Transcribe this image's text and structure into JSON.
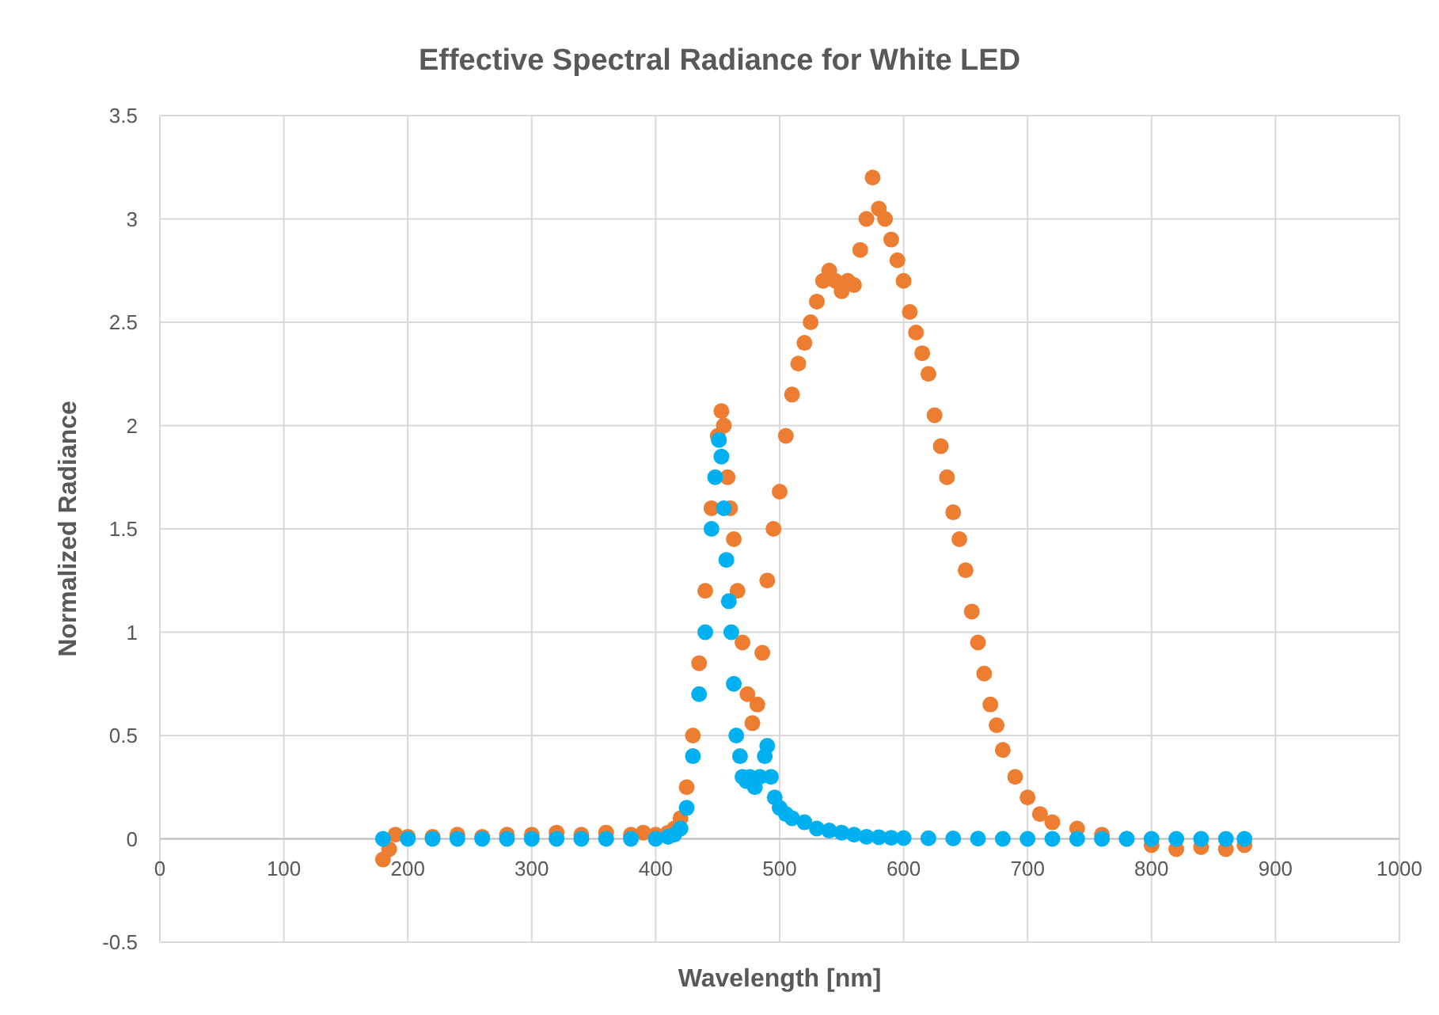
{
  "chart_data": {
    "type": "scatter",
    "title": "Effective Spectral Radiance for White LED",
    "xlabel": "Wavelength [nm]",
    "ylabel": "Normalized Radiance",
    "xlim": [
      0,
      1000
    ],
    "xticks": [
      0,
      100,
      200,
      300,
      400,
      500,
      600,
      700,
      800,
      900,
      1000
    ],
    "ylim": [
      -0.5,
      3.5
    ],
    "yticks": [
      -0.5,
      0,
      0.5,
      1,
      1.5,
      2,
      2.5,
      3,
      3.5
    ],
    "grid": true,
    "marker": "circle",
    "series": [
      {
        "color": "#ed7d31",
        "x": [
          180,
          185,
          190,
          200,
          220,
          240,
          260,
          280,
          300,
          320,
          340,
          360,
          380,
          390,
          400,
          410,
          415,
          420,
          425,
          430,
          435,
          440,
          445,
          450,
          453,
          455,
          458,
          460,
          463,
          466,
          470,
          474,
          478,
          482,
          486,
          490,
          495,
          500,
          505,
          510,
          515,
          520,
          525,
          530,
          535,
          540,
          545,
          550,
          555,
          560,
          565,
          570,
          575,
          580,
          585,
          590,
          595,
          600,
          605,
          610,
          615,
          620,
          625,
          630,
          635,
          640,
          645,
          650,
          655,
          660,
          665,
          670,
          675,
          680,
          690,
          700,
          710,
          720,
          740,
          760,
          780,
          800,
          820,
          840,
          860,
          875
        ],
        "values": [
          -0.1,
          -0.05,
          0.02,
          0.01,
          0.01,
          0.02,
          0.01,
          0.02,
          0.02,
          0.03,
          0.02,
          0.03,
          0.02,
          0.03,
          0.02,
          0.03,
          0.05,
          0.1,
          0.25,
          0.5,
          0.85,
          1.2,
          1.6,
          1.95,
          2.07,
          2.0,
          1.75,
          1.6,
          1.45,
          1.2,
          0.95,
          0.7,
          0.56,
          0.65,
          0.9,
          1.25,
          1.5,
          1.68,
          1.95,
          2.15,
          2.3,
          2.4,
          2.5,
          2.6,
          2.7,
          2.75,
          2.7,
          2.65,
          2.7,
          2.68,
          2.85,
          3.0,
          3.2,
          3.05,
          3.0,
          2.9,
          2.8,
          2.7,
          2.55,
          2.45,
          2.35,
          2.25,
          2.05,
          1.9,
          1.75,
          1.58,
          1.45,
          1.3,
          1.1,
          0.95,
          0.8,
          0.65,
          0.55,
          0.43,
          0.3,
          0.2,
          0.12,
          0.08,
          0.05,
          0.02,
          0.0,
          -0.03,
          -0.05,
          -0.04,
          -0.05,
          -0.03
        ]
      },
      {
        "color": "#00b0f0",
        "x": [
          180,
          200,
          220,
          240,
          260,
          280,
          300,
          320,
          340,
          360,
          380,
          400,
          410,
          415,
          420,
          425,
          430,
          435,
          440,
          445,
          448,
          451,
          453,
          455,
          457,
          459,
          461,
          463,
          465,
          468,
          470,
          473,
          476,
          480,
          484,
          488,
          490,
          493,
          496,
          500,
          505,
          510,
          520,
          530,
          540,
          550,
          560,
          570,
          580,
          590,
          600,
          620,
          640,
          660,
          680,
          700,
          720,
          740,
          760,
          780,
          800,
          820,
          840,
          860,
          875
        ],
        "values": [
          0,
          0,
          0,
          0,
          0,
          0,
          0,
          0,
          0,
          0,
          0,
          0,
          0.01,
          0.02,
          0.05,
          0.15,
          0.4,
          0.7,
          1.0,
          1.5,
          1.75,
          1.93,
          1.85,
          1.6,
          1.35,
          1.15,
          1.0,
          0.75,
          0.5,
          0.4,
          0.3,
          0.28,
          0.3,
          0.25,
          0.3,
          0.4,
          0.45,
          0.3,
          0.2,
          0.15,
          0.12,
          0.1,
          0.08,
          0.05,
          0.04,
          0.03,
          0.02,
          0.01,
          0.008,
          0.005,
          0.004,
          0.003,
          0.002,
          0.001,
          0,
          0,
          0,
          0,
          0,
          0,
          0,
          0,
          0,
          0,
          0
        ]
      }
    ]
  }
}
